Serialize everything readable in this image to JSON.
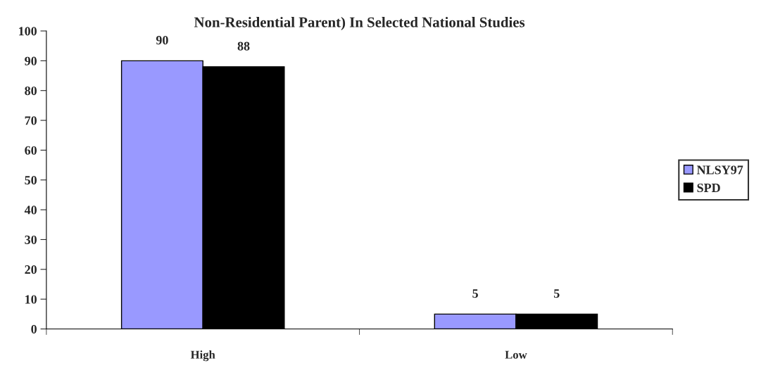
{
  "chart_data": {
    "type": "bar",
    "title": "Non-Residential Parent) In Selected National Studies",
    "categories": [
      "High",
      "Low"
    ],
    "series": [
      {
        "name": "NLSY97",
        "color": "#9999ff",
        "values": [
          90,
          5
        ]
      },
      {
        "name": "SPD",
        "color": "#000000",
        "values": [
          88,
          5
        ]
      }
    ],
    "ylim": [
      0,
      100
    ],
    "yticks": [
      0,
      10,
      20,
      30,
      40,
      50,
      60,
      70,
      80,
      90,
      100
    ],
    "data_labels": true,
    "grid": false,
    "legend": "right"
  }
}
